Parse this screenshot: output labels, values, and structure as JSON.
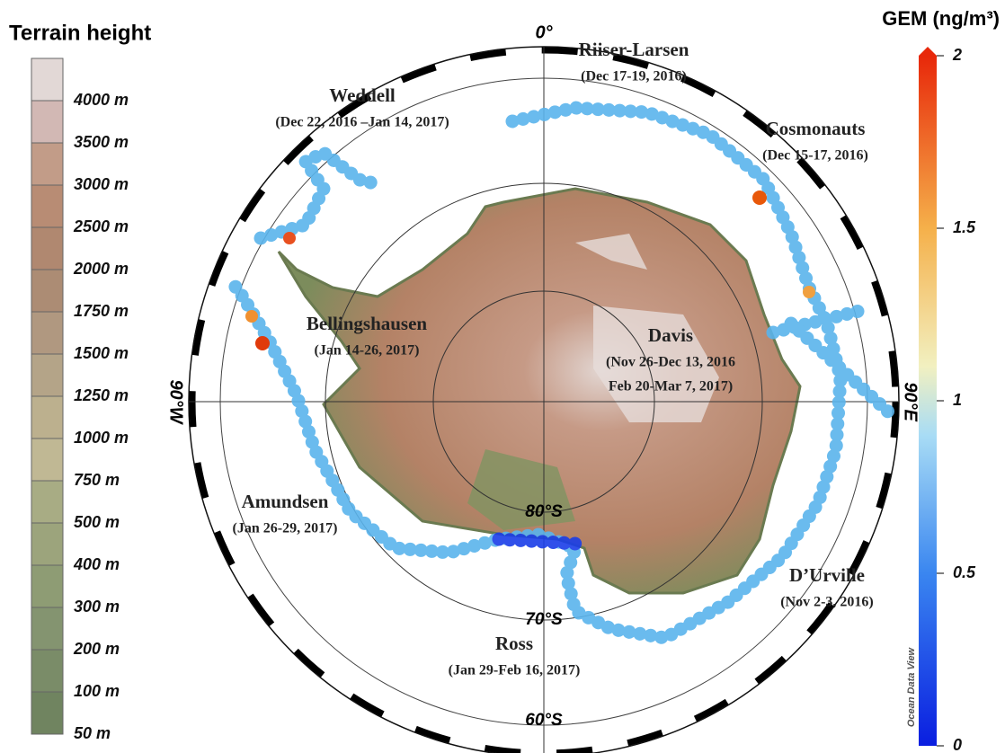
{
  "terrain_legend": {
    "title": "Terrain height",
    "labels": [
      "4000 m",
      "3500 m",
      "3000 m",
      "2500 m",
      "2000 m",
      "1750 m",
      "1500 m",
      "1250 m",
      "1000 m",
      "750 m",
      "500 m",
      "400 m",
      "300 m",
      "200 m",
      "100 m",
      "50 m"
    ]
  },
  "colorbar": {
    "title": "GEM (ng/m³)",
    "lim": [
      0,
      2
    ],
    "ticks": [
      0,
      0.5,
      1,
      1.5,
      2
    ]
  },
  "map": {
    "meridian_labels": {
      "top": "0°",
      "left": "90°W",
      "right": "90°E"
    },
    "latitude_labels": [
      "80°S",
      "70°S",
      "60°S"
    ],
    "regions": [
      {
        "name": "Riiser-Larsen",
        "dates": [
          "(Dec 17-19, 2016)"
        ]
      },
      {
        "name": "Weddell",
        "dates": [
          "(Dec 22, 2016 –Jan 14, 2017)"
        ]
      },
      {
        "name": "Cosmonauts",
        "dates": [
          "(Dec 15-17, 2016)"
        ]
      },
      {
        "name": "Bellingshausen",
        "dates": [
          "(Jan 14-26, 2017)"
        ]
      },
      {
        "name": "Davis",
        "dates": [
          "(Nov 26-Dec 13, 2016",
          "Feb 20-Mar 7, 2017)"
        ]
      },
      {
        "name": "Amundsen",
        "dates": [
          "(Jan 26-29, 2017)"
        ]
      },
      {
        "name": "D’Urville",
        "dates": [
          "(Nov 2-3, 2016)"
        ]
      },
      {
        "name": "Ross",
        "dates": [
          "(Jan 29-Feb 16, 2017)"
        ]
      }
    ],
    "watermark": "Ocean Data View"
  }
}
